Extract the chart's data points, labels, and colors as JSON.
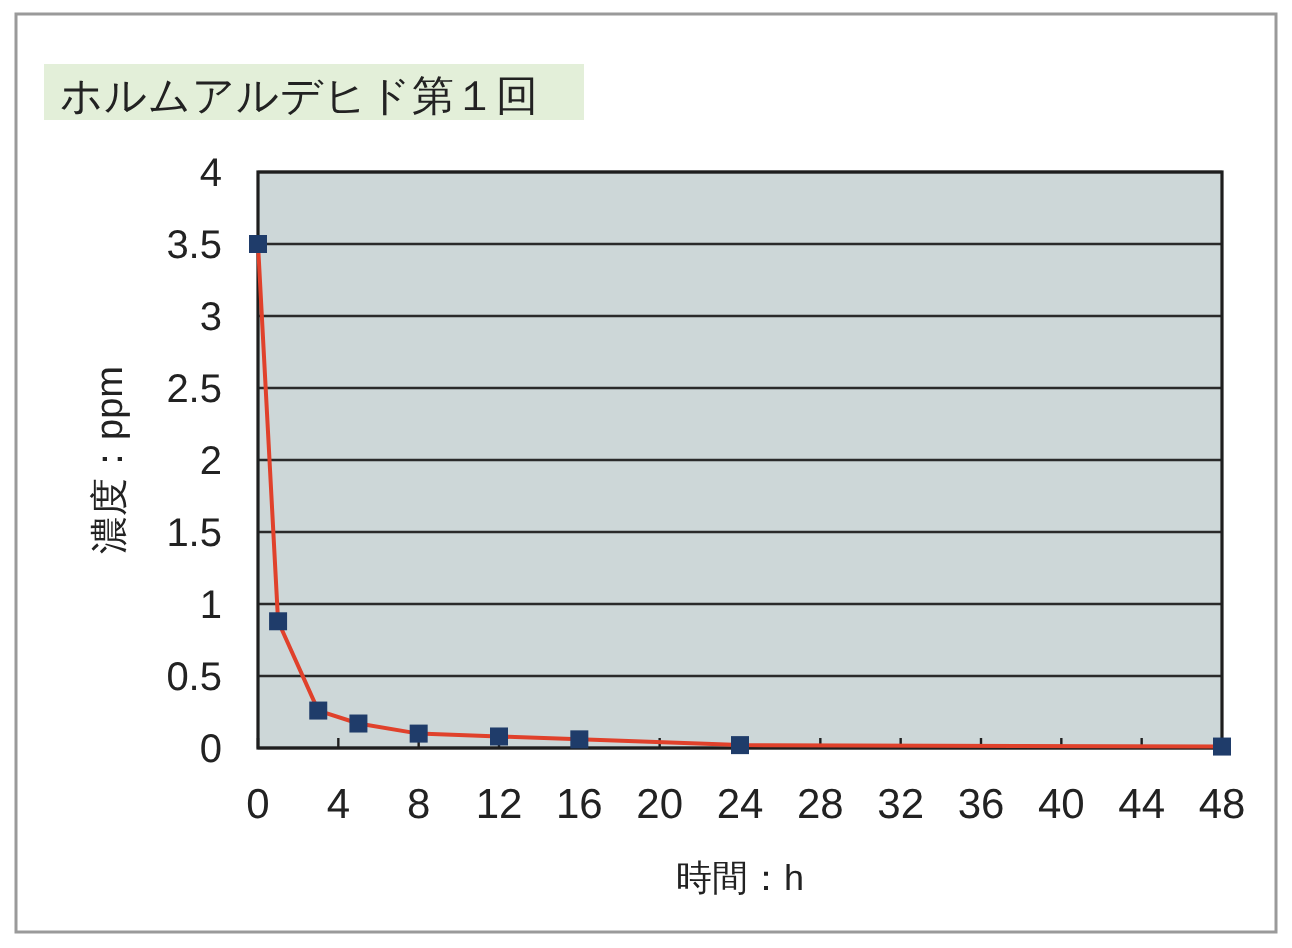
{
  "chart_data": {
    "type": "line",
    "title": "ホルムアルデヒド第１回",
    "xlabel": "時間：h",
    "ylabel": "濃度：ppm",
    "x": [
      0,
      1,
      3,
      5,
      8,
      12,
      16,
      24,
      48
    ],
    "series": [
      {
        "color": "#e0412b",
        "colors": [
          "#1f3c6a",
          "#1f3c6a",
          "#1f3c6a",
          "#1f3c6a",
          "#1f3c6a",
          "#1f3c6a",
          "#1f3c6a",
          "#1f3c6a",
          "#1f3c6a"
        ],
        "values": [
          3.5,
          0.88,
          0.26,
          0.17,
          0.1,
          0.08,
          0.06,
          0.02,
          0.01
        ]
      }
    ],
    "xlim": [
      0,
      48
    ],
    "xticks": [
      0,
      4,
      8,
      12,
      16,
      20,
      24,
      28,
      32,
      36,
      40,
      44,
      48
    ],
    "ylim": [
      0,
      4
    ],
    "yticks": [
      0,
      0.5,
      1,
      1.5,
      2,
      2.5,
      3,
      3.5,
      4
    ],
    "grid": "y",
    "marker": "square",
    "line_style": "solid"
  }
}
